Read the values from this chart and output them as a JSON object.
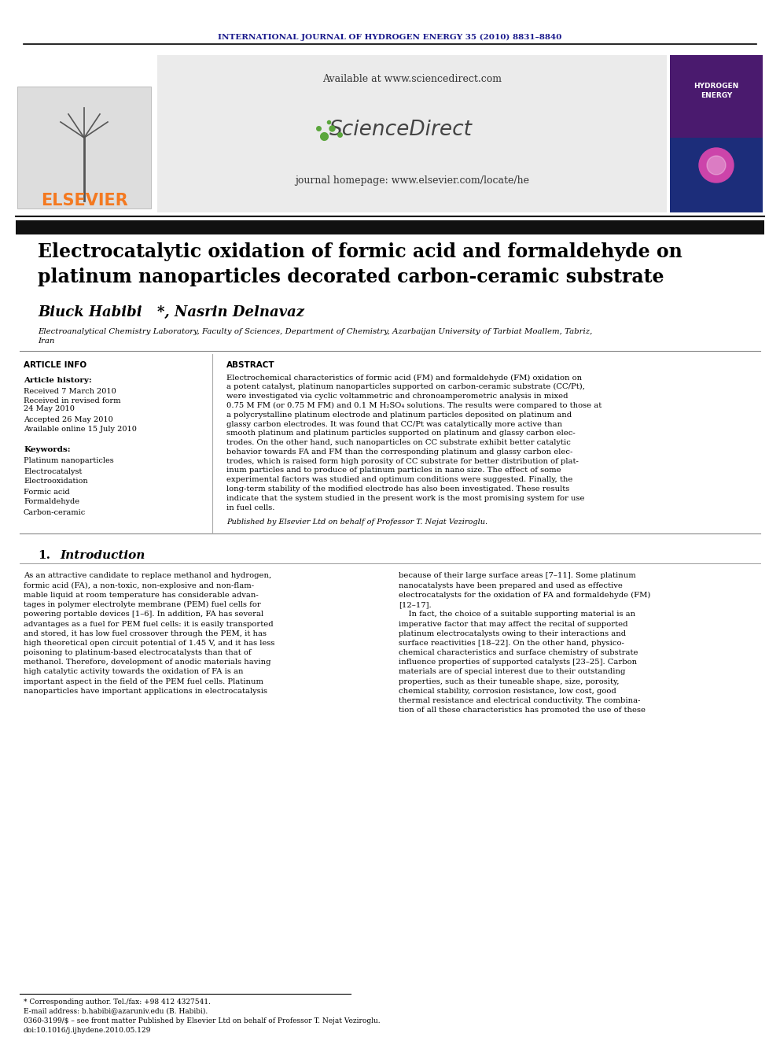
{
  "journal_header": "INTERNATIONAL JOURNAL OF HYDROGEN ENERGY 35 (2010) 8831–8840",
  "journal_header_color": "#1a1a8c",
  "title_line1": "Electrocatalytic oxidation of formic acid and formaldehyde on",
  "title_line2": "platinum nanoparticles decorated carbon-ceramic substrate",
  "author_name": "Biuck Habibi",
  "author_rest": "*, Nasrin Delnavaz",
  "affiliation_line1": "Electroanalytical Chemistry Laboratory, Faculty of Sciences, Department of Chemistry, Azarbaijan University of Tarbiat Moallem, Tabriz,",
  "affiliation_line2": "Iran",
  "elsevier_color": "#f47920",
  "sd_center_bg": "#e8e8e8",
  "sd_available": "Available at www.sciencedirect.com",
  "sd_journal": "journal homepage: www.elsevier.com/locate/he",
  "article_info_label": "ARTICLE INFO",
  "article_history_label": "Article history:",
  "received1": "Received 7 March 2010",
  "received2a": "Received in revised form",
  "received2b": "24 May 2010",
  "accepted": "Accepted 26 May 2010",
  "available_online": "Available online 15 July 2010",
  "keywords_label": "Keywords:",
  "keywords": [
    "Platinum nanoparticles",
    "Electrocatalyst",
    "Electrooxidation",
    "Formic acid",
    "Formaldehyde",
    "Carbon-ceramic"
  ],
  "abstract_label": "ABSTRACT",
  "abstract_lines": [
    "Electrochemical characteristics of formic acid (FM) and formaldehyde (FM) oxidation on",
    "a potent catalyst, platinum nanoparticles supported on carbon-ceramic substrate (CC/Pt),",
    "were investigated via cyclic voltammetric and chronoamperometric analysis in mixed",
    "0.75 M FM (or 0.75 M FM) and 0.1 M H₂SO₄ solutions. The results were compared to those at",
    "a polycrystalline platinum electrode and platinum particles deposited on platinum and",
    "glassy carbon electrodes. It was found that CC/Pt was catalytically more active than",
    "smooth platinum and platinum particles supported on platinum and glassy carbon elec-",
    "trodes. On the other hand, such nanoparticles on CC substrate exhibit better catalytic",
    "behavior towards FA and FM than the corresponding platinum and glassy carbon elec-",
    "trodes, which is raised form high porosity of CC substrate for better distribution of plat-",
    "inum particles and to produce of platinum particles in nano size. The effect of some",
    "experimental factors was studied and optimum conditions were suggested. Finally, the",
    "long-term stability of the modified electrode has also been investigated. These results",
    "indicate that the system studied in the present work is the most promising system for use",
    "in fuel cells."
  ],
  "published_by": "Published by Elsevier Ltd on behalf of Professor T. Nejat Veziroglu.",
  "intro_num": "1.",
  "intro_title": "Introduction",
  "intro_col1_lines": [
    "As an attractive candidate to replace methanol and hydrogen,",
    "formic acid (FA), a non-toxic, non-explosive and non-flam-",
    "mable liquid at room temperature has considerable advan-",
    "tages in polymer electrolyte membrane (PEM) fuel cells for",
    "powering portable devices [1–6]. In addition, FA has several",
    "advantages as a fuel for PEM fuel cells: it is easily transported",
    "and stored, it has low fuel crossover through the PEM, it has",
    "high theoretical open circuit potential of 1.45 V, and it has less",
    "poisoning to platinum-based electrocatalysts than that of",
    "methanol. Therefore, development of anodic materials having",
    "high catalytic activity towards the oxidation of FA is an",
    "important aspect in the field of the PEM fuel cells. Platinum",
    "nanoparticles have important applications in electrocatalysis"
  ],
  "intro_col2_lines": [
    "because of their large surface areas [7–11]. Some platinum",
    "nanocatalysts have been prepared and used as effective",
    "electrocatalysts for the oxidation of FA and formaldehyde (FM)",
    "[12–17].",
    "    In fact, the choice of a suitable supporting material is an",
    "imperative factor that may affect the recital of supported",
    "platinum electrocatalysts owing to their interactions and",
    "surface reactivities [18–22]. On the other hand, physico-",
    "chemical characteristics and surface chemistry of substrate",
    "influence properties of supported catalysts [23–25]. Carbon",
    "materials are of special interest due to their outstanding",
    "properties, such as their tuneable shape, size, porosity,",
    "chemical stability, corrosion resistance, low cost, good",
    "thermal resistance and electrical conductivity. The combina-",
    "tion of all these characteristics has promoted the use of these"
  ],
  "footnote1": "* Corresponding author. Tel./fax: +98 412 4327541.",
  "footnote2": "E-mail address: b.habibi@azaruniv.edu (B. Habibi).",
  "footnote3": "0360-3199/$ – see front matter Published by Elsevier Ltd on behalf of Professor T. Nejat Veziroglu.",
  "footnote4": "doi:10.1016/j.ijhydene.2010.05.129",
  "bg_color": "#ffffff",
  "text_color": "#000000"
}
